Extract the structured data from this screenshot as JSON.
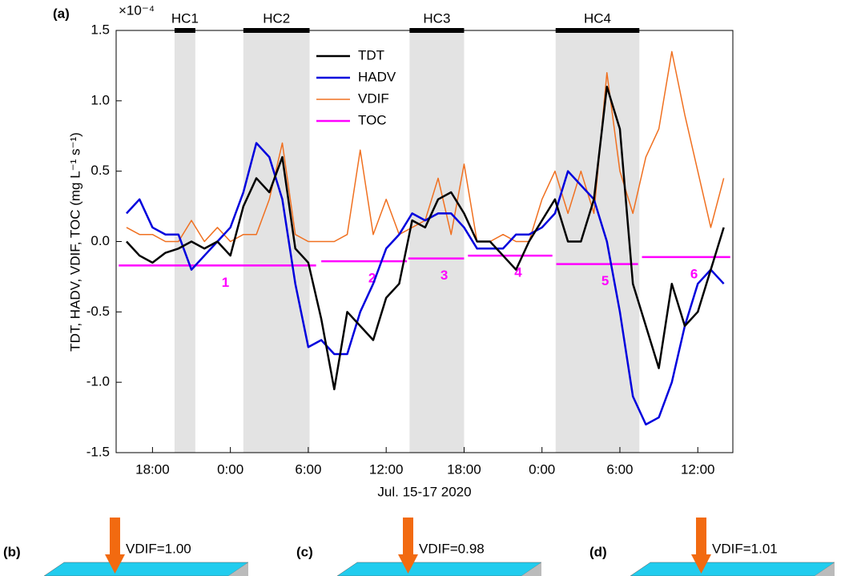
{
  "chart_data": {
    "type": "line",
    "panel_label": "(a)",
    "multiplier": "×10⁻⁴",
    "ylabel": "TDT, HADV, VDIF, TOC (mg L⁻¹ s⁻¹)",
    "xlabel": "Jul. 15-17 2020",
    "xlim": [
      15.2,
      62.7
    ],
    "ylim": [
      -1.5,
      1.5
    ],
    "xticks": [
      {
        "value": 18,
        "label": "18:00"
      },
      {
        "value": 24,
        "label": "0:00"
      },
      {
        "value": 30,
        "label": "6:00"
      },
      {
        "value": 36,
        "label": "12:00"
      },
      {
        "value": 42,
        "label": "18:00"
      },
      {
        "value": 48,
        "label": "0:00"
      },
      {
        "value": 54,
        "label": "6:00"
      },
      {
        "value": 60,
        "label": "12:00"
      }
    ],
    "yticks": [
      -1.5,
      {
        "value": -1.0,
        "label": "-1.0"
      },
      -0.5,
      {
        "value": 0.0,
        "label": "0.0"
      },
      0.5,
      {
        "value": 1.0,
        "label": "1.0"
      },
      1.5
    ],
    "x": [
      16,
      17,
      18,
      19,
      20,
      21,
      22,
      23,
      24,
      25,
      26,
      27,
      28,
      29,
      30,
      31,
      32,
      33,
      34,
      35,
      36,
      37,
      38,
      39,
      40,
      41,
      42,
      43,
      44,
      45,
      46,
      47,
      48,
      49,
      50,
      51,
      52,
      53,
      54,
      55,
      56,
      57,
      58,
      59,
      60,
      61,
      62
    ],
    "series": [
      {
        "name": "TDT",
        "color": "#000000",
        "width": 2.5,
        "values": [
          0.0,
          -0.1,
          -0.15,
          -0.08,
          -0.05,
          0.0,
          -0.05,
          0.0,
          -0.1,
          0.25,
          0.45,
          0.35,
          0.6,
          -0.05,
          -0.15,
          -0.55,
          -1.05,
          -0.5,
          -0.6,
          -0.7,
          -0.4,
          -0.3,
          0.15,
          0.1,
          0.3,
          0.35,
          0.2,
          0.0,
          0.0,
          -0.1,
          -0.2,
          0.0,
          0.15,
          0.3,
          0.0,
          0.0,
          0.3,
          1.1,
          0.8,
          -0.3,
          -0.6,
          -0.9,
          -0.3,
          -0.6,
          -0.5,
          -0.2,
          0.1
        ]
      },
      {
        "name": "HADV",
        "color": "#0000dd",
        "width": 2.5,
        "values": [
          0.2,
          0.3,
          0.1,
          0.05,
          0.05,
          -0.2,
          -0.1,
          0.0,
          0.1,
          0.35,
          0.7,
          0.6,
          0.3,
          -0.3,
          -0.75,
          -0.7,
          -0.8,
          -0.8,
          -0.5,
          -0.3,
          -0.05,
          0.05,
          0.2,
          0.15,
          0.2,
          0.2,
          0.1,
          -0.05,
          -0.05,
          -0.05,
          0.05,
          0.05,
          0.1,
          0.2,
          0.5,
          0.4,
          0.3,
          0.0,
          -0.5,
          -1.1,
          -1.3,
          -1.25,
          -1.0,
          -0.6,
          -0.3,
          -0.2,
          -0.3
        ]
      },
      {
        "name": "VDIF",
        "color": "#f07020",
        "width": 1.5,
        "values": [
          0.1,
          0.05,
          0.05,
          0.0,
          0.0,
          0.15,
          0.0,
          0.1,
          0.0,
          0.05,
          0.05,
          0.3,
          0.7,
          0.05,
          0.0,
          0.0,
          0.0,
          0.05,
          0.65,
          0.05,
          0.3,
          0.05,
          0.1,
          0.15,
          0.45,
          0.05,
          0.55,
          0.0,
          0.0,
          0.05,
          0.0,
          0.0,
          0.3,
          0.5,
          0.2,
          0.5,
          0.2,
          1.2,
          0.5,
          0.2,
          0.6,
          0.8,
          1.35,
          0.9,
          0.5,
          0.1,
          0.45
        ]
      }
    ],
    "toc": {
      "name": "TOC",
      "color": "#ff00ff",
      "segments": [
        {
          "label": "1",
          "start": 15.4,
          "end": 30.6,
          "value": -0.17
        },
        {
          "label": "2",
          "start": 31.0,
          "end": 37.6,
          "value": -0.14
        },
        {
          "label": "3",
          "start": 37.7,
          "end": 42.0,
          "value": -0.12
        },
        {
          "label": "4",
          "start": 42.3,
          "end": 48.8,
          "value": -0.1
        },
        {
          "label": "5",
          "start": 49.1,
          "end": 55.4,
          "value": -0.16
        },
        {
          "label": "6",
          "start": 55.7,
          "end": 62.5,
          "value": -0.11
        }
      ]
    },
    "shaded": [
      {
        "label": "HC1",
        "start": 19.7,
        "end": 21.3
      },
      {
        "label": "HC2",
        "start": 25.0,
        "end": 30.1
      },
      {
        "label": "HC3",
        "start": 37.8,
        "end": 42.0
      },
      {
        "label": "HC4",
        "start": 49.05,
        "end": 55.5
      }
    ]
  },
  "panels": [
    {
      "label": "(b)",
      "text": "VDIF=1.00"
    },
    {
      "label": "(c)",
      "text": "VDIF=0.98"
    },
    {
      "label": "(d)",
      "text": "VDIF=1.01"
    }
  ]
}
